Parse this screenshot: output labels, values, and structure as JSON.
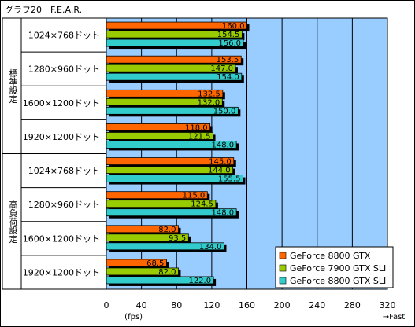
{
  "chart_data": {
    "type": "bar",
    "orientation": "horizontal",
    "title": "グラフ20　F.E.A.R.",
    "groups": [
      {
        "label": "標準設定",
        "categories": [
          "1024×768ドット",
          "1280×960ドット",
          "1600×1200ドット",
          "1920×1200ドット"
        ],
        "series_values": [
          [
            160.0,
            154.5,
            156.0
          ],
          [
            153.5,
            147.0,
            154.0
          ],
          [
            132.5,
            132.0,
            150.0
          ],
          [
            118.0,
            121.5,
            148.0
          ]
        ]
      },
      {
        "label": "高負荷設定",
        "categories": [
          "1024×768ドット",
          "1280×960ドット",
          "1600×1200ドット",
          "1920×1200ドット"
        ],
        "series_values": [
          [
            145.0,
            144.0,
            155.5
          ],
          [
            115.0,
            124.5,
            148.0
          ],
          [
            82.0,
            93.5,
            134.0
          ],
          [
            68.5,
            82.0,
            122.0
          ]
        ]
      }
    ],
    "series": [
      {
        "name": "GeForce 8800 GTX",
        "color": "#ff6600"
      },
      {
        "name": "GeForce 7900 GTX SLI",
        "color": "#99cc00"
      },
      {
        "name": "GeForce 8800 GTX SLI",
        "color": "#33cccc"
      }
    ],
    "xlim": [
      0,
      320
    ],
    "xticks": [
      0,
      40,
      80,
      120,
      160,
      200,
      240,
      280,
      320
    ],
    "xlabel": "(fps)",
    "direction_note": "→Fast",
    "grid": true,
    "plot_background": "#99ccff",
    "legend_position": "bottom-right"
  }
}
